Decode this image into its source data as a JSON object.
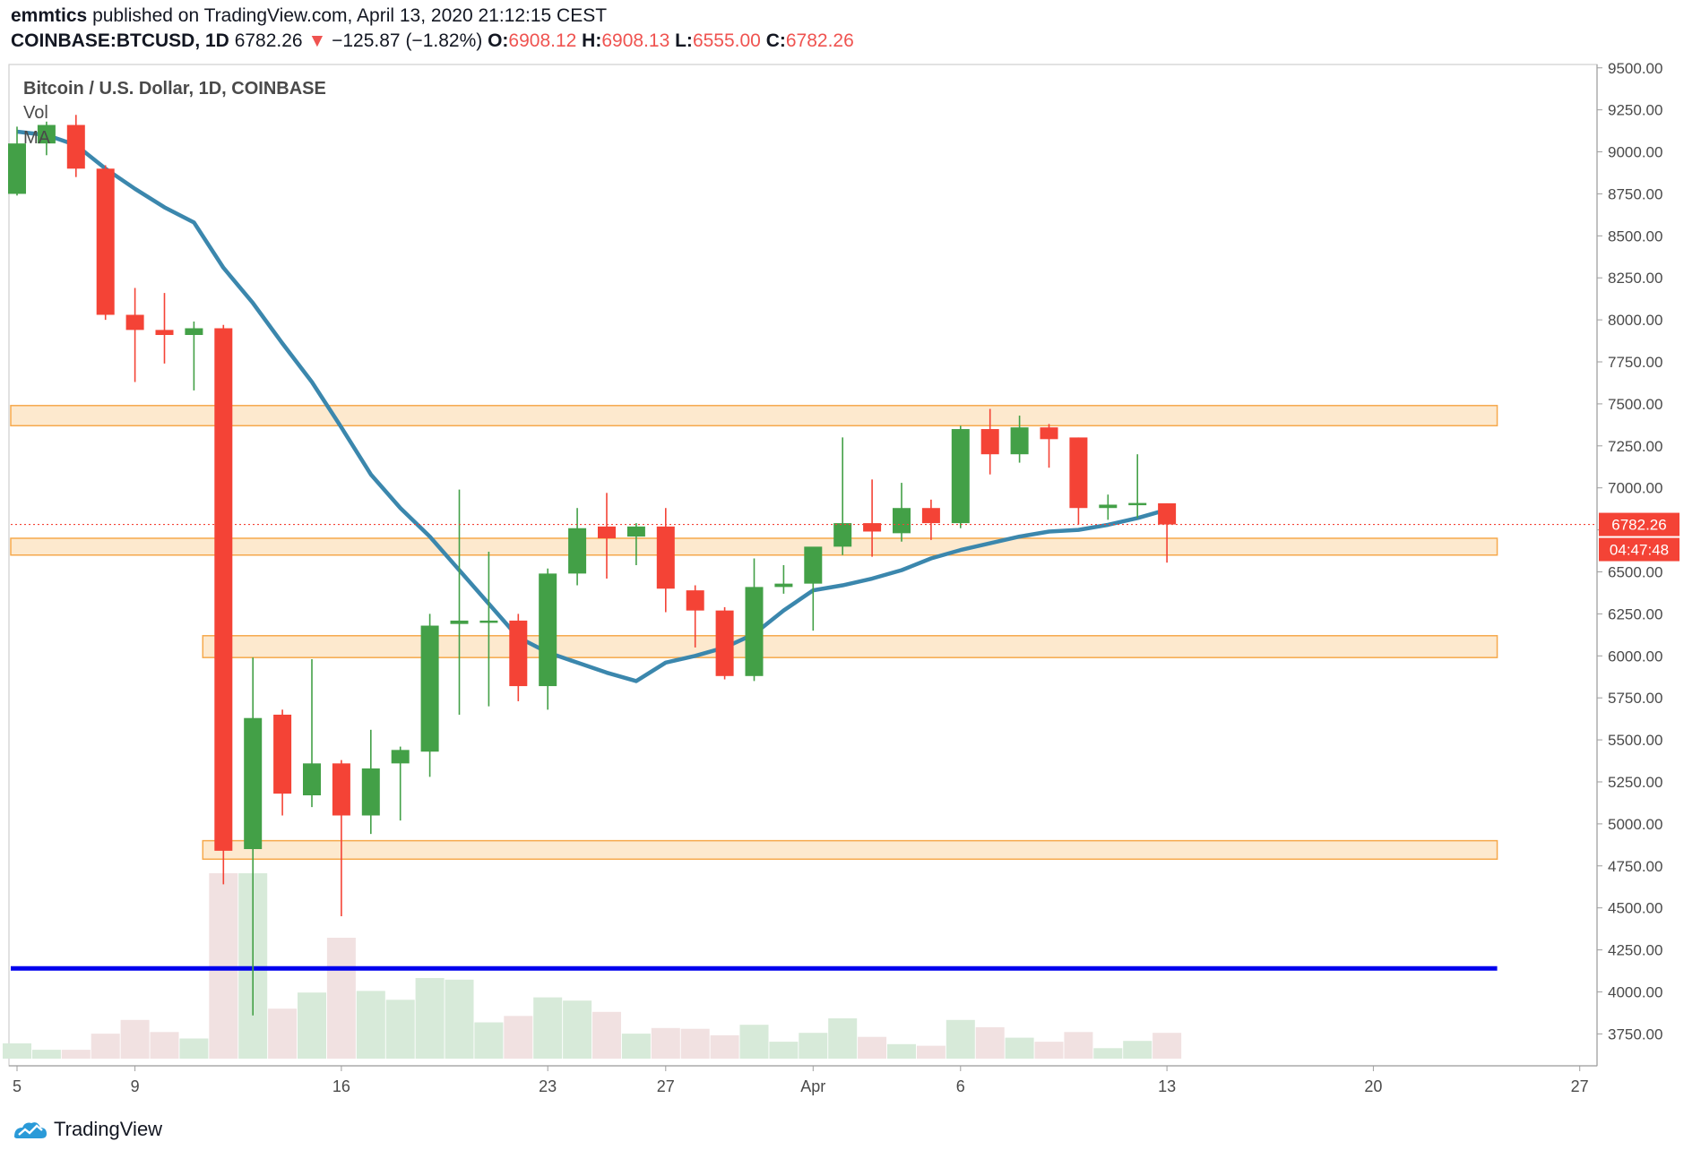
{
  "header": {
    "author": "emmtics",
    "published_text": "published on TradingView.com, April 13, 2020 21:12:15 CEST",
    "symbol": "COINBASE:BTCUSD, 1D",
    "last": "6782.26",
    "down_arrow": "▼",
    "change": "−125.87 (−1.82%)",
    "o_label": "O:",
    "o_value": "6908.12",
    "h_label": "H:",
    "h_value": "6908.13",
    "l_label": "L:",
    "l_value": "6555.00",
    "c_label": "C:",
    "c_value": "6782.26"
  },
  "chart_title": "Bitcoin / U.S. Dollar, 1D, COINBASE",
  "indicators": {
    "vol": "Vol",
    "ma": "MA"
  },
  "price_tag": "6782.26",
  "countdown_tag": "04:47:48",
  "footer": {
    "brand": "TradingView",
    "logo_icon": "tradingview-logo-icon"
  },
  "colors": {
    "up": "#43a047",
    "down": "#f44336",
    "vol_up": "#d7ead9",
    "vol_down": "#f1e1e1",
    "ma": "#3b87ad",
    "zone_fill": "#fde3c2",
    "zone_border": "#f6a94c",
    "support_line": "#0000ee",
    "axis_text": "#4a4a4a"
  },
  "chart_data": {
    "type": "candlestick",
    "title": "Bitcoin / U.S. Dollar, 1D, COINBASE",
    "ylim": [
      3560,
      9520
    ],
    "y_ticks": [
      "9500.00",
      "9250.00",
      "9000.00",
      "8750.00",
      "8500.00",
      "8250.00",
      "8000.00",
      "7750.00",
      "7500.00",
      "7250.00",
      "7000.00",
      "6750.00",
      "6500.00",
      "6250.00",
      "6000.00",
      "5750.00",
      "5500.00",
      "5250.00",
      "5000.00",
      "4750.00",
      "4500.00",
      "4250.00",
      "4000.00",
      "3750.00"
    ],
    "x_ticks": [
      {
        "label": "5",
        "day": 0
      },
      {
        "label": "9",
        "day": 4
      },
      {
        "label": "16",
        "day": 11
      },
      {
        "label": "23",
        "day": 18
      },
      {
        "label": "27",
        "day": 22
      },
      {
        "label": "Apr",
        "day": 27
      },
      {
        "label": "6",
        "day": 32
      },
      {
        "label": "13",
        "day": 39
      },
      {
        "label": "20",
        "day": 46
      },
      {
        "label": "27",
        "day": 53
      }
    ],
    "candles": [
      {
        "o": 8750,
        "h": 9150,
        "l": 8740,
        "c": 9050,
        "vol": 0.19
      },
      {
        "o": 9050,
        "h": 9180,
        "l": 8980,
        "c": 9160,
        "vol": 0.11
      },
      {
        "o": 9160,
        "h": 9220,
        "l": 8850,
        "c": 8900,
        "vol": 0.11
      },
      {
        "o": 8900,
        "h": 8920,
        "l": 8000,
        "c": 8030,
        "vol": 0.31
      },
      {
        "o": 8030,
        "h": 8190,
        "l": 7630,
        "c": 7940,
        "vol": 0.48
      },
      {
        "o": 7940,
        "h": 8160,
        "l": 7740,
        "c": 7910,
        "vol": 0.33
      },
      {
        "o": 7910,
        "h": 7990,
        "l": 7580,
        "c": 7950,
        "vol": 0.25
      },
      {
        "o": 7950,
        "h": 7970,
        "l": 4640,
        "c": 4840,
        "vol": 2.3
      },
      {
        "o": 4850,
        "h": 5990,
        "l": 3860,
        "c": 5630,
        "vol": 2.3
      },
      {
        "o": 5650,
        "h": 5680,
        "l": 5050,
        "c": 5180,
        "vol": 0.62
      },
      {
        "o": 5170,
        "h": 5980,
        "l": 5100,
        "c": 5360,
        "vol": 0.82
      },
      {
        "o": 5360,
        "h": 5380,
        "l": 4450,
        "c": 5050,
        "vol": 1.5
      },
      {
        "o": 5050,
        "h": 5560,
        "l": 4940,
        "c": 5330,
        "vol": 0.84
      },
      {
        "o": 5360,
        "h": 5460,
        "l": 5020,
        "c": 5440,
        "vol": 0.73
      },
      {
        "o": 5430,
        "h": 6250,
        "l": 5280,
        "c": 6180,
        "vol": 1.0
      },
      {
        "o": 6190,
        "h": 6990,
        "l": 5650,
        "c": 6210,
        "vol": 0.98
      },
      {
        "o": 6200,
        "h": 6620,
        "l": 5700,
        "c": 6210,
        "vol": 0.45
      },
      {
        "o": 6210,
        "h": 6250,
        "l": 5730,
        "c": 5820,
        "vol": 0.53
      },
      {
        "o": 5820,
        "h": 6520,
        "l": 5680,
        "c": 6490,
        "vol": 0.76
      },
      {
        "o": 6490,
        "h": 6880,
        "l": 6420,
        "c": 6760,
        "vol": 0.72
      },
      {
        "o": 6770,
        "h": 6970,
        "l": 6460,
        "c": 6700,
        "vol": 0.58
      },
      {
        "o": 6710,
        "h": 6790,
        "l": 6540,
        "c": 6770,
        "vol": 0.31
      },
      {
        "o": 6770,
        "h": 6880,
        "l": 6260,
        "c": 6400,
        "vol": 0.38
      },
      {
        "o": 6390,
        "h": 6420,
        "l": 6050,
        "c": 6270,
        "vol": 0.37
      },
      {
        "o": 6270,
        "h": 6290,
        "l": 5860,
        "c": 5880,
        "vol": 0.29
      },
      {
        "o": 5880,
        "h": 6580,
        "l": 5850,
        "c": 6410,
        "vol": 0.42
      },
      {
        "o": 6410,
        "h": 6540,
        "l": 6370,
        "c": 6430,
        "vol": 0.21
      },
      {
        "o": 6430,
        "h": 6640,
        "l": 6150,
        "c": 6650,
        "vol": 0.32
      },
      {
        "o": 6650,
        "h": 7300,
        "l": 6600,
        "c": 6790,
        "vol": 0.5
      },
      {
        "o": 6790,
        "h": 7050,
        "l": 6590,
        "c": 6740,
        "vol": 0.27
      },
      {
        "o": 6730,
        "h": 7030,
        "l": 6680,
        "c": 6880,
        "vol": 0.18
      },
      {
        "o": 6880,
        "h": 6930,
        "l": 6690,
        "c": 6790,
        "vol": 0.16
      },
      {
        "o": 6790,
        "h": 7370,
        "l": 6760,
        "c": 7350,
        "vol": 0.48
      },
      {
        "o": 7350,
        "h": 7470,
        "l": 7080,
        "c": 7200,
        "vol": 0.39
      },
      {
        "o": 7200,
        "h": 7430,
        "l": 7150,
        "c": 7360,
        "vol": 0.26
      },
      {
        "o": 7360,
        "h": 7380,
        "l": 7120,
        "c": 7290,
        "vol": 0.21
      },
      {
        "o": 7300,
        "h": 7300,
        "l": 6780,
        "c": 6880,
        "vol": 0.33
      },
      {
        "o": 6880,
        "h": 6960,
        "l": 6810,
        "c": 6900,
        "vol": 0.13
      },
      {
        "o": 6900,
        "h": 7200,
        "l": 6820,
        "c": 6910,
        "vol": 0.22
      },
      {
        "o": 6908.12,
        "h": 6908.13,
        "l": 6555,
        "c": 6782.26,
        "vol": 0.32
      }
    ],
    "ma_line": [
      {
        "day": 0,
        "v": 9120
      },
      {
        "day": 1,
        "v": 9100
      },
      {
        "day": 2,
        "v": 9040
      },
      {
        "day": 3,
        "v": 8900
      },
      {
        "day": 4,
        "v": 8780
      },
      {
        "day": 5,
        "v": 8670
      },
      {
        "day": 6,
        "v": 8580
      },
      {
        "day": 7,
        "v": 8310
      },
      {
        "day": 8,
        "v": 8100
      },
      {
        "day": 9,
        "v": 7860
      },
      {
        "day": 10,
        "v": 7630
      },
      {
        "day": 11,
        "v": 7360
      },
      {
        "day": 12,
        "v": 7080
      },
      {
        "day": 13,
        "v": 6880
      },
      {
        "day": 14,
        "v": 6710
      },
      {
        "day": 15,
        "v": 6510
      },
      {
        "day": 16,
        "v": 6310
      },
      {
        "day": 17,
        "v": 6110
      },
      {
        "day": 18,
        "v": 6020
      },
      {
        "day": 19,
        "v": 5960
      },
      {
        "day": 20,
        "v": 5900
      },
      {
        "day": 21,
        "v": 5850
      },
      {
        "day": 22,
        "v": 5960
      },
      {
        "day": 23,
        "v": 6000
      },
      {
        "day": 24,
        "v": 6050
      },
      {
        "day": 25,
        "v": 6130
      },
      {
        "day": 26,
        "v": 6270
      },
      {
        "day": 27,
        "v": 6390
      },
      {
        "day": 28,
        "v": 6420
      },
      {
        "day": 29,
        "v": 6460
      },
      {
        "day": 30,
        "v": 6510
      },
      {
        "day": 31,
        "v": 6580
      },
      {
        "day": 32,
        "v": 6630
      },
      {
        "day": 33,
        "v": 6670
      },
      {
        "day": 34,
        "v": 6710
      },
      {
        "day": 35,
        "v": 6740
      },
      {
        "day": 36,
        "v": 6750
      },
      {
        "day": 37,
        "v": 6780
      },
      {
        "day": 38,
        "v": 6820
      },
      {
        "day": 39,
        "v": 6870
      }
    ],
    "zones": [
      {
        "low": 7370,
        "high": 7490,
        "to_day": 50.2
      },
      {
        "low": 6600,
        "high": 6700,
        "to_day": 50.2
      },
      {
        "low": 5990,
        "high": 6120,
        "to_day": 50.2
      },
      {
        "low": 4790,
        "high": 4900,
        "to_day": 50.2
      }
    ],
    "support_level": 4140,
    "last_price": 6782.26
  }
}
